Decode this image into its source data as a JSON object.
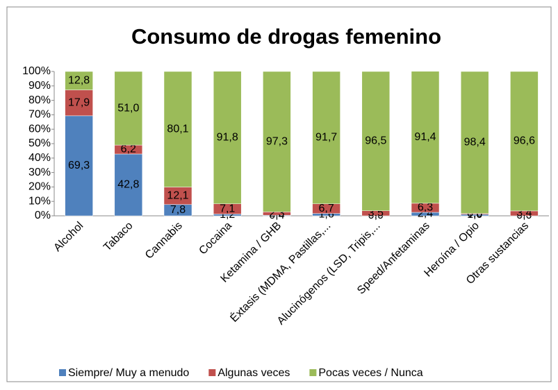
{
  "chart_data": {
    "type": "stacked_bar_100",
    "title": "Consumo de drogas femenino",
    "categories": [
      "Alcohol",
      "Tabaco",
      "Cannabis",
      "Cocaina",
      "Ketamina / GHB",
      "Éxtasis (MDMA, Pastillas,...",
      "Alucinógenos (LSD, Tripis,...",
      "Speed/Anfetaminas",
      "Heroína / Opio",
      "Otras sustancias"
    ],
    "series": [
      {
        "name": "Siempre/ Muy a menudo",
        "color": "#4f81bd",
        "values": [
          69.3,
          42.8,
          7.8,
          1.2,
          0.4,
          1.6,
          0.0,
          2.4,
          1.0,
          0.0
        ],
        "value_labels": [
          "69,3",
          "42,8",
          "7,8",
          "1,2",
          "0,4",
          "1,6",
          "0,0",
          "2,4",
          "1,0",
          "0,0"
        ]
      },
      {
        "name": "Algunas veces",
        "color": "#c0504d",
        "values": [
          17.9,
          6.2,
          12.1,
          7.1,
          2.3,
          6.7,
          3.5,
          6.3,
          0.6,
          3.4
        ],
        "value_labels": [
          "17,9",
          "6,2",
          "12,1",
          "7,1",
          "2,3",
          "6,7",
          "3,5",
          "6,3",
          "0,6",
          "3,4"
        ]
      },
      {
        "name": "Pocas veces / Nunca",
        "color": "#9bbb59",
        "values": [
          12.8,
          51.0,
          80.1,
          91.8,
          97.3,
          91.7,
          96.5,
          91.4,
          98.4,
          96.6
        ],
        "value_labels": [
          "12,8",
          "51,0",
          "80,1",
          "91,8",
          "97,3",
          "91,7",
          "96,5",
          "91,4",
          "98,4",
          "96,6"
        ]
      }
    ],
    "ylim": [
      0,
      100
    ],
    "yticks": [
      {
        "value": 0,
        "label": "0%"
      },
      {
        "value": 10,
        "label": "10%"
      },
      {
        "value": 20,
        "label": "20%"
      },
      {
        "value": 30,
        "label": "30%"
      },
      {
        "value": 40,
        "label": "40%"
      },
      {
        "value": 50,
        "label": "50%"
      },
      {
        "value": 60,
        "label": "60%"
      },
      {
        "value": 70,
        "label": "70%"
      },
      {
        "value": 80,
        "label": "80%"
      },
      {
        "value": 90,
        "label": "90%"
      },
      {
        "value": 100,
        "label": "100%"
      }
    ],
    "legend": "bottom"
  }
}
